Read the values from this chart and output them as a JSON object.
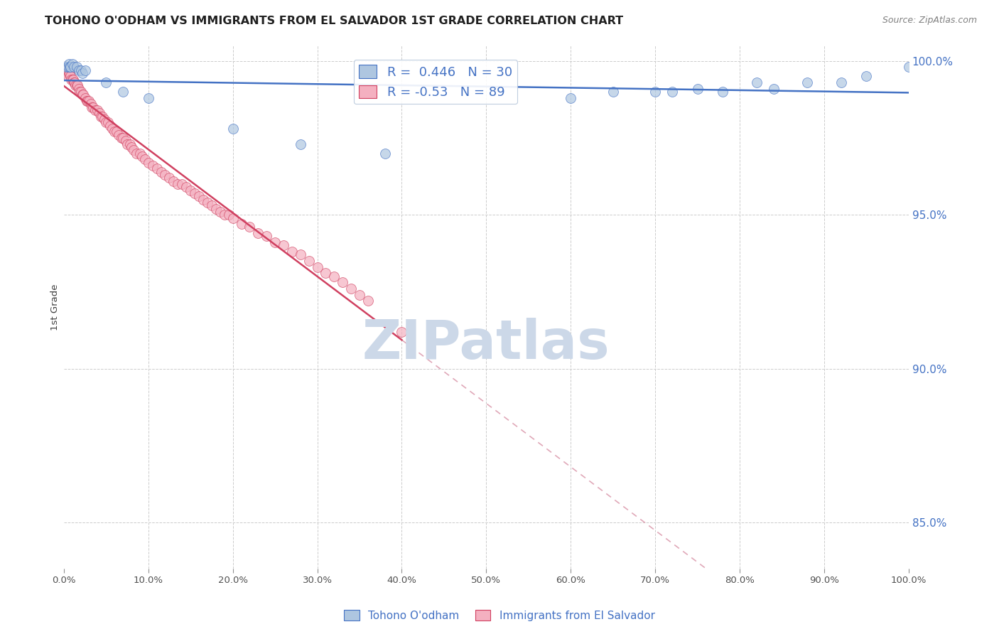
{
  "title": "TOHONO O'ODHAM VS IMMIGRANTS FROM EL SALVADOR 1ST GRADE CORRELATION CHART",
  "source": "Source: ZipAtlas.com",
  "ylabel": "1st Grade",
  "legend_blue_label": "Tohono O'odham",
  "legend_pink_label": "Immigrants from El Salvador",
  "blue_R": 0.446,
  "blue_N": 30,
  "pink_R": -0.53,
  "pink_N": 89,
  "watermark": "ZIPatlas",
  "blue_color": "#aec6e0",
  "blue_line_color": "#4472c4",
  "pink_color": "#f4b0c0",
  "pink_line_color": "#d04060",
  "pink_dashed_color": "#e0a8b8",
  "blue_scatter_x": [
    0.003,
    0.005,
    0.006,
    0.007,
    0.008,
    0.01,
    0.012,
    0.015,
    0.018,
    0.02,
    0.022,
    0.025,
    0.05,
    0.07,
    0.1,
    0.2,
    0.28,
    0.38,
    0.6,
    0.65,
    0.7,
    0.72,
    0.75,
    0.78,
    0.82,
    0.84,
    0.88,
    0.92,
    0.95,
    1.0
  ],
  "blue_scatter_y": [
    0.998,
    0.998,
    0.999,
    0.998,
    0.998,
    0.999,
    0.998,
    0.998,
    0.997,
    0.997,
    0.996,
    0.997,
    0.993,
    0.99,
    0.988,
    0.978,
    0.973,
    0.97,
    0.988,
    0.99,
    0.99,
    0.99,
    0.991,
    0.99,
    0.993,
    0.991,
    0.993,
    0.993,
    0.995,
    0.998
  ],
  "pink_scatter_x": [
    0.002,
    0.003,
    0.004,
    0.005,
    0.006,
    0.007,
    0.008,
    0.009,
    0.01,
    0.011,
    0.012,
    0.013,
    0.014,
    0.015,
    0.016,
    0.018,
    0.019,
    0.02,
    0.022,
    0.023,
    0.025,
    0.027,
    0.028,
    0.03,
    0.032,
    0.033,
    0.035,
    0.037,
    0.04,
    0.042,
    0.044,
    0.046,
    0.048,
    0.05,
    0.052,
    0.055,
    0.057,
    0.06,
    0.062,
    0.065,
    0.068,
    0.07,
    0.073,
    0.075,
    0.078,
    0.08,
    0.083,
    0.086,
    0.09,
    0.093,
    0.096,
    0.1,
    0.105,
    0.11,
    0.115,
    0.12,
    0.125,
    0.13,
    0.135,
    0.14,
    0.145,
    0.15,
    0.155,
    0.16,
    0.165,
    0.17,
    0.175,
    0.18,
    0.185,
    0.19,
    0.195,
    0.2,
    0.21,
    0.22,
    0.23,
    0.24,
    0.25,
    0.26,
    0.27,
    0.28,
    0.29,
    0.3,
    0.31,
    0.32,
    0.33,
    0.34,
    0.35,
    0.36,
    0.4
  ],
  "pink_scatter_y": [
    0.997,
    0.997,
    0.996,
    0.995,
    0.996,
    0.996,
    0.995,
    0.994,
    0.994,
    0.994,
    0.993,
    0.993,
    0.992,
    0.992,
    0.992,
    0.991,
    0.99,
    0.99,
    0.989,
    0.989,
    0.988,
    0.987,
    0.987,
    0.987,
    0.986,
    0.985,
    0.985,
    0.984,
    0.984,
    0.983,
    0.982,
    0.982,
    0.981,
    0.98,
    0.98,
    0.979,
    0.978,
    0.977,
    0.977,
    0.976,
    0.975,
    0.975,
    0.974,
    0.973,
    0.973,
    0.972,
    0.971,
    0.97,
    0.97,
    0.969,
    0.968,
    0.967,
    0.966,
    0.965,
    0.964,
    0.963,
    0.962,
    0.961,
    0.96,
    0.96,
    0.959,
    0.958,
    0.957,
    0.956,
    0.955,
    0.954,
    0.953,
    0.952,
    0.951,
    0.95,
    0.95,
    0.949,
    0.947,
    0.946,
    0.944,
    0.943,
    0.941,
    0.94,
    0.938,
    0.937,
    0.935,
    0.933,
    0.931,
    0.93,
    0.928,
    0.926,
    0.924,
    0.922,
    0.912
  ],
  "xlim": [
    0.0,
    1.0
  ],
  "ylim": [
    0.835,
    1.005
  ],
  "yticks": [
    0.85,
    0.9,
    0.95,
    1.0
  ],
  "xticks": [
    0.0,
    0.1,
    0.2,
    0.3,
    0.4,
    0.5,
    0.6,
    0.7,
    0.8,
    0.9,
    1.0
  ],
  "grid_color": "#cccccc",
  "background_color": "#ffffff",
  "title_color": "#202020",
  "source_color": "#808080",
  "right_label_color": "#4472c4",
  "watermark_color": "#ccd8e8",
  "title_fontsize": 11.5,
  "source_fontsize": 9,
  "scatter_size": 100,
  "scatter_alpha": 0.7
}
